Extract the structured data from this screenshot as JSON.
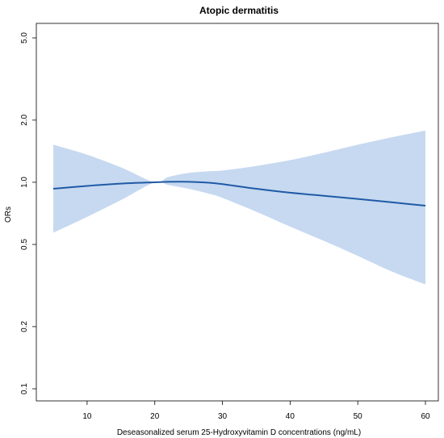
{
  "chart_data": {
    "type": "line",
    "title": "Atopic dermatitis",
    "xlabel": "Deseasonalized serum 25-Hydroxyvitamin D concentrations (ng/mL)",
    "ylabel": "ORs",
    "y_scale": "log",
    "xlim": [
      5,
      60
    ],
    "ylim": [
      0.09,
      6
    ],
    "x_ticks": [
      10,
      20,
      30,
      40,
      50,
      60
    ],
    "x_tick_labels": [
      "10",
      "20",
      "30",
      "40",
      "50",
      "60"
    ],
    "y_ticks": [
      0.1,
      0.2,
      0.5,
      1.0,
      2.0,
      5.0
    ],
    "y_tick_labels": [
      "0.1",
      "0.2",
      "0.5",
      "1.0",
      "2.0",
      "5.0"
    ],
    "grid": false,
    "colors": {
      "line": "#1f5aa6",
      "band": "#c6d9f0",
      "axis": "#000000"
    },
    "series": [
      {
        "x": [
          5,
          10,
          15,
          20,
          22,
          25,
          28,
          30,
          35,
          40,
          45,
          50,
          55,
          60
        ],
        "y": [
          0.93,
          0.96,
          0.985,
          1.0,
          1.005,
          1.005,
          0.995,
          0.98,
          0.93,
          0.89,
          0.86,
          0.83,
          0.8,
          0.77
        ],
        "lower": [
          0.57,
          0.68,
          0.82,
          1.0,
          0.97,
          0.93,
          0.88,
          0.84,
          0.72,
          0.61,
          0.52,
          0.44,
          0.37,
          0.32
        ],
        "upper": [
          1.52,
          1.36,
          1.18,
          1.0,
          1.06,
          1.11,
          1.13,
          1.14,
          1.2,
          1.28,
          1.39,
          1.52,
          1.65,
          1.78
        ]
      }
    ]
  }
}
